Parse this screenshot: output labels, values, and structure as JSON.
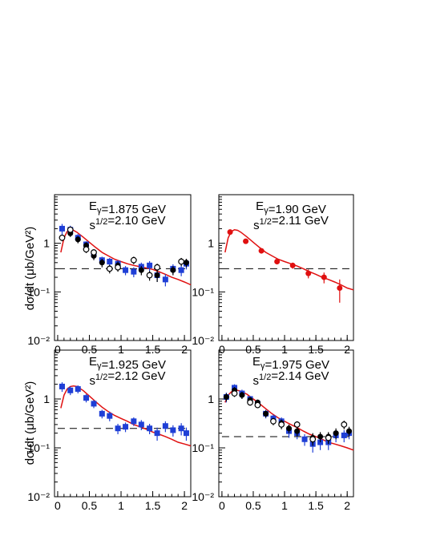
{
  "figure": {
    "ylabel_left_top": "dσ/dt  (μb/GeV²)",
    "ylabel_left_bottom": "dσ/dt  (μb/GeV²)"
  },
  "chart_data": [
    {
      "type": "scatter",
      "panel": "top-left",
      "annotation_lines": [
        "E_γ=1.875 GeV",
        "s^{1/2}=2.10 GeV"
      ],
      "xlim": [
        -0.05,
        2.1
      ],
      "ylim": [
        0.01,
        10
      ],
      "yscale": "log",
      "x_ticks": [
        "0",
        "0.5",
        "1",
        "1.5",
        "2"
      ],
      "y_ticks": [
        "10⁻²",
        "10⁻¹",
        "1"
      ],
      "grid": false,
      "dashed_level": 0.3,
      "curve": {
        "color": "#e01010",
        "points": [
          [
            0.05,
            0.65
          ],
          [
            0.1,
            1.3
          ],
          [
            0.15,
            1.75
          ],
          [
            0.2,
            1.9
          ],
          [
            0.25,
            1.85
          ],
          [
            0.3,
            1.7
          ],
          [
            0.4,
            1.35
          ],
          [
            0.5,
            1.05
          ],
          [
            0.6,
            0.82
          ],
          [
            0.7,
            0.65
          ],
          [
            0.8,
            0.55
          ],
          [
            0.9,
            0.47
          ],
          [
            1.0,
            0.42
          ],
          [
            1.1,
            0.38
          ],
          [
            1.2,
            0.35
          ],
          [
            1.3,
            0.33
          ],
          [
            1.4,
            0.31
          ],
          [
            1.5,
            0.29
          ],
          [
            1.6,
            0.26
          ],
          [
            1.7,
            0.23
          ],
          [
            1.8,
            0.2
          ],
          [
            1.9,
            0.18
          ],
          [
            2.0,
            0.16
          ],
          [
            2.1,
            0.14
          ]
        ]
      },
      "series": [
        {
          "style": "filled-square",
          "color": "#1f3fd6",
          "points": [
            [
              0.07,
              2.0,
              0.5
            ],
            [
              0.2,
              1.9,
              0.4
            ],
            [
              0.32,
              1.3,
              0.25
            ],
            [
              0.45,
              0.95,
              0.15
            ],
            [
              0.57,
              0.6,
              0.12
            ],
            [
              0.7,
              0.45,
              0.08
            ],
            [
              0.82,
              0.42,
              0.08
            ],
            [
              0.95,
              0.38,
              0.07
            ],
            [
              1.07,
              0.28,
              0.06
            ],
            [
              1.2,
              0.26,
              0.06
            ],
            [
              1.32,
              0.33,
              0.07
            ],
            [
              1.45,
              0.35,
              0.08
            ],
            [
              1.57,
              0.22,
              0.06
            ],
            [
              1.7,
              0.18,
              0.05
            ],
            [
              1.82,
              0.3,
              0.07
            ],
            [
              1.95,
              0.28,
              0.07
            ],
            [
              2.03,
              0.38,
              0.09
            ]
          ]
        },
        {
          "style": "filled-circle",
          "color": "#000000",
          "points": [
            [
              0.2,
              1.6,
              0.25
            ],
            [
              0.32,
              1.2,
              0.2
            ],
            [
              0.45,
              0.9,
              0.15
            ],
            [
              0.57,
              0.55,
              0.1
            ],
            [
              0.7,
              0.4,
              0.08
            ],
            [
              0.95,
              0.35,
              0.07
            ],
            [
              1.32,
              0.28,
              0.06
            ],
            [
              1.57,
              0.22,
              0.06
            ],
            [
              1.82,
              0.28,
              0.06
            ],
            [
              2.03,
              0.4,
              0.08
            ]
          ]
        },
        {
          "style": "open-circle",
          "color": "#000000",
          "points": [
            [
              0.07,
              1.3,
              0.2
            ],
            [
              0.2,
              1.9,
              0.3
            ],
            [
              0.45,
              0.75,
              0.12
            ],
            [
              0.57,
              0.65,
              0.1
            ],
            [
              0.82,
              0.3,
              0.06
            ],
            [
              0.95,
              0.32,
              0.06
            ],
            [
              1.2,
              0.45,
              0.08
            ],
            [
              1.45,
              0.22,
              0.05
            ],
            [
              1.57,
              0.32,
              0.06
            ],
            [
              1.95,
              0.42,
              0.08
            ]
          ]
        }
      ]
    },
    {
      "type": "scatter",
      "panel": "top-right",
      "annotation_lines": [
        "E_γ=1.90 GeV",
        "s^{1/2}=2.11 GeV"
      ],
      "xlim": [
        -0.05,
        2.1
      ],
      "ylim": [
        0.01,
        10
      ],
      "yscale": "log",
      "x_ticks": [
        "0",
        "0.5",
        "1",
        "1.5",
        "2"
      ],
      "y_ticks": [
        "10⁻²",
        "10⁻¹",
        "1"
      ],
      "grid": false,
      "dashed_level": 0.3,
      "curve": {
        "color": "#e01010",
        "points": [
          [
            0.05,
            0.65
          ],
          [
            0.1,
            1.3
          ],
          [
            0.15,
            1.75
          ],
          [
            0.2,
            1.9
          ],
          [
            0.25,
            1.85
          ],
          [
            0.3,
            1.7
          ],
          [
            0.4,
            1.35
          ],
          [
            0.5,
            1.05
          ],
          [
            0.6,
            0.82
          ],
          [
            0.7,
            0.65
          ],
          [
            0.8,
            0.55
          ],
          [
            0.9,
            0.47
          ],
          [
            1.0,
            0.42
          ],
          [
            1.1,
            0.38
          ],
          [
            1.2,
            0.34
          ],
          [
            1.3,
            0.3
          ],
          [
            1.4,
            0.26
          ],
          [
            1.5,
            0.23
          ],
          [
            1.6,
            0.2
          ],
          [
            1.7,
            0.18
          ],
          [
            1.8,
            0.16
          ],
          [
            1.9,
            0.14
          ],
          [
            2.0,
            0.12
          ],
          [
            2.1,
            0.11
          ]
        ]
      },
      "series": [
        {
          "style": "filled-circle",
          "color": "#e01010",
          "points": [
            [
              0.13,
              1.7,
              0.2
            ],
            [
              0.38,
              1.1,
              0.12
            ],
            [
              0.63,
              0.7,
              0.08
            ],
            [
              0.88,
              0.42,
              0.05
            ],
            [
              1.13,
              0.35,
              0.05
            ],
            [
              1.38,
              0.24,
              0.05
            ],
            [
              1.63,
              0.2,
              0.05
            ],
            [
              1.88,
              0.12,
              0.06
            ]
          ]
        }
      ]
    },
    {
      "type": "scatter",
      "panel": "bottom-left",
      "annotation_lines": [
        "E_γ=1.925 GeV",
        "s^{1/2}=2.12 GeV"
      ],
      "xlim": [
        -0.05,
        2.1
      ],
      "ylim": [
        0.01,
        10
      ],
      "yscale": "log",
      "x_ticks": [
        "0",
        "0.5",
        "1",
        "1.5",
        "2"
      ],
      "y_ticks": [
        "10⁻²",
        "10⁻¹",
        "1"
      ],
      "grid": false,
      "dashed_level": 0.25,
      "curve": {
        "color": "#e01010",
        "points": [
          [
            0.05,
            0.65
          ],
          [
            0.1,
            1.2
          ],
          [
            0.15,
            1.6
          ],
          [
            0.2,
            1.8
          ],
          [
            0.25,
            1.85
          ],
          [
            0.3,
            1.8
          ],
          [
            0.4,
            1.5
          ],
          [
            0.5,
            1.15
          ],
          [
            0.6,
            0.88
          ],
          [
            0.7,
            0.68
          ],
          [
            0.8,
            0.55
          ],
          [
            0.9,
            0.46
          ],
          [
            1.0,
            0.4
          ],
          [
            1.1,
            0.35
          ],
          [
            1.2,
            0.3
          ],
          [
            1.3,
            0.27
          ],
          [
            1.4,
            0.24
          ],
          [
            1.5,
            0.21
          ],
          [
            1.6,
            0.19
          ],
          [
            1.7,
            0.17
          ],
          [
            1.8,
            0.15
          ],
          [
            1.9,
            0.13
          ],
          [
            2.0,
            0.12
          ],
          [
            2.1,
            0.11
          ]
        ]
      },
      "series": [
        {
          "style": "filled-square",
          "color": "#1f3fd6",
          "points": [
            [
              0.07,
              1.8,
              0.4
            ],
            [
              0.2,
              1.5,
              0.3
            ],
            [
              0.32,
              1.6,
              0.3
            ],
            [
              0.45,
              1.05,
              0.2
            ],
            [
              0.57,
              0.8,
              0.15
            ],
            [
              0.7,
              0.5,
              0.1
            ],
            [
              0.82,
              0.45,
              0.1
            ],
            [
              0.95,
              0.25,
              0.06
            ],
            [
              1.07,
              0.27,
              0.06
            ],
            [
              1.2,
              0.35,
              0.07
            ],
            [
              1.32,
              0.3,
              0.07
            ],
            [
              1.45,
              0.25,
              0.06
            ],
            [
              1.57,
              0.2,
              0.06
            ],
            [
              1.7,
              0.28,
              0.07
            ],
            [
              1.82,
              0.23,
              0.06
            ],
            [
              1.95,
              0.25,
              0.07
            ],
            [
              2.03,
              0.2,
              0.06
            ]
          ]
        }
      ]
    },
    {
      "type": "scatter",
      "panel": "bottom-right",
      "annotation_lines": [
        "E_γ=1.975 GeV",
        "s^{1/2}=2.14 GeV"
      ],
      "xlim": [
        -0.05,
        2.1
      ],
      "ylim": [
        0.01,
        10
      ],
      "yscale": "log",
      "x_ticks": [
        "0",
        "0.5",
        "1",
        "1.5",
        "2"
      ],
      "y_ticks": [
        "10⁻²",
        "10⁻¹",
        "1"
      ],
      "grid": false,
      "dashed_level": 0.17,
      "curve": {
        "color": "#e01010",
        "points": [
          [
            0.05,
            0.85
          ],
          [
            0.1,
            1.2
          ],
          [
            0.15,
            1.4
          ],
          [
            0.2,
            1.5
          ],
          [
            0.25,
            1.5
          ],
          [
            0.3,
            1.45
          ],
          [
            0.4,
            1.25
          ],
          [
            0.5,
            1.0
          ],
          [
            0.6,
            0.8
          ],
          [
            0.7,
            0.63
          ],
          [
            0.8,
            0.5
          ],
          [
            0.9,
            0.41
          ],
          [
            1.0,
            0.35
          ],
          [
            1.1,
            0.3
          ],
          [
            1.2,
            0.26
          ],
          [
            1.3,
            0.22
          ],
          [
            1.4,
            0.19
          ],
          [
            1.5,
            0.17
          ],
          [
            1.6,
            0.15
          ],
          [
            1.7,
            0.13
          ],
          [
            1.8,
            0.12
          ],
          [
            1.9,
            0.11
          ],
          [
            2.0,
            0.1
          ],
          [
            2.1,
            0.09
          ]
        ]
      },
      "series": [
        {
          "style": "filled-square",
          "color": "#1f3fd6",
          "points": [
            [
              0.07,
              1.1,
              0.25
            ],
            [
              0.2,
              1.7,
              0.3
            ],
            [
              0.32,
              1.3,
              0.25
            ],
            [
              0.45,
              1.0,
              0.15
            ],
            [
              0.57,
              0.8,
              0.12
            ],
            [
              0.7,
              0.5,
              0.1
            ],
            [
              0.82,
              0.4,
              0.08
            ],
            [
              0.95,
              0.35,
              0.07
            ],
            [
              1.07,
              0.22,
              0.06
            ],
            [
              1.2,
              0.2,
              0.05
            ],
            [
              1.32,
              0.15,
              0.04
            ],
            [
              1.45,
              0.12,
              0.04
            ],
            [
              1.57,
              0.13,
              0.04
            ],
            [
              1.7,
              0.13,
              0.04
            ],
            [
              1.82,
              0.18,
              0.05
            ],
            [
              1.95,
              0.18,
              0.05
            ],
            [
              2.03,
              0.2,
              0.05
            ]
          ]
        },
        {
          "style": "filled-circle",
          "color": "#000000",
          "points": [
            [
              0.07,
              1.1,
              0.2
            ],
            [
              0.2,
              1.5,
              0.25
            ],
            [
              0.32,
              1.2,
              0.2
            ],
            [
              0.45,
              0.95,
              0.15
            ],
            [
              0.57,
              0.85,
              0.12
            ],
            [
              0.7,
              0.5,
              0.08
            ],
            [
              0.95,
              0.32,
              0.06
            ],
            [
              1.07,
              0.25,
              0.05
            ],
            [
              1.2,
              0.22,
              0.05
            ],
            [
              1.45,
              0.16,
              0.04
            ],
            [
              1.57,
              0.17,
              0.04
            ],
            [
              1.7,
              0.17,
              0.04
            ],
            [
              1.82,
              0.2,
              0.05
            ],
            [
              2.03,
              0.22,
              0.05
            ]
          ]
        },
        {
          "style": "open-circle",
          "color": "#000000",
          "points": [
            [
              0.2,
              1.3,
              0.2
            ],
            [
              0.45,
              0.85,
              0.12
            ],
            [
              0.57,
              0.75,
              0.1
            ],
            [
              0.82,
              0.35,
              0.06
            ],
            [
              0.95,
              0.3,
              0.06
            ],
            [
              1.2,
              0.3,
              0.05
            ],
            [
              1.45,
              0.15,
              0.04
            ],
            [
              1.7,
              0.16,
              0.04
            ],
            [
              1.95,
              0.3,
              0.06
            ]
          ]
        }
      ]
    }
  ]
}
